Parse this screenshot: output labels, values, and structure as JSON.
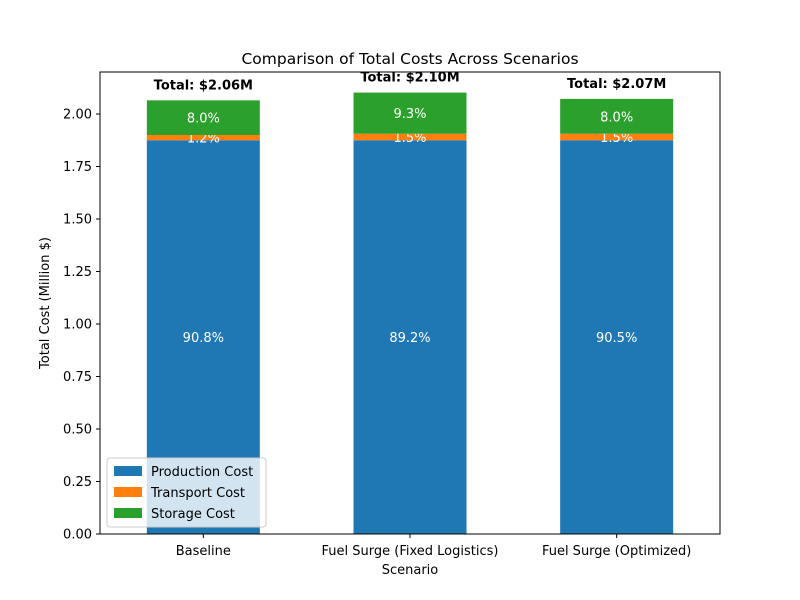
{
  "chart_data": {
    "type": "bar",
    "stacked": true,
    "title": "Comparison of Total Costs Across Scenarios",
    "xlabel": "Scenario",
    "ylabel": "Total Cost (Million $)",
    "ylim": [
      0,
      2.2
    ],
    "yticks": [
      "0.00",
      "0.25",
      "0.50",
      "0.75",
      "1.00",
      "1.25",
      "1.50",
      "1.75",
      "2.00"
    ],
    "categories": [
      "Baseline",
      "Fuel Surge (Fixed Logistics)",
      "Fuel Surge (Optimized)"
    ],
    "series": [
      {
        "name": "Production Cost",
        "color": "#1f77b4",
        "values": [
          1.875,
          1.875,
          1.875
        ],
        "percent_labels": [
          "90.8%",
          "89.2%",
          "90.5%"
        ]
      },
      {
        "name": "Transport Cost",
        "color": "#ff7f0e",
        "values": [
          0.025,
          0.031,
          0.031
        ],
        "percent_labels": [
          "1.2%",
          "1.5%",
          "1.5%"
        ]
      },
      {
        "name": "Storage Cost",
        "color": "#2ca02c",
        "values": [
          0.165,
          0.196,
          0.166
        ],
        "percent_labels": [
          "8.0%",
          "9.3%",
          "8.0%"
        ]
      }
    ],
    "totals": [
      "Total: $2.06M",
      "Total: $2.10M",
      "Total: $2.07M"
    ],
    "grid": false,
    "legend_position": "lower-left"
  }
}
